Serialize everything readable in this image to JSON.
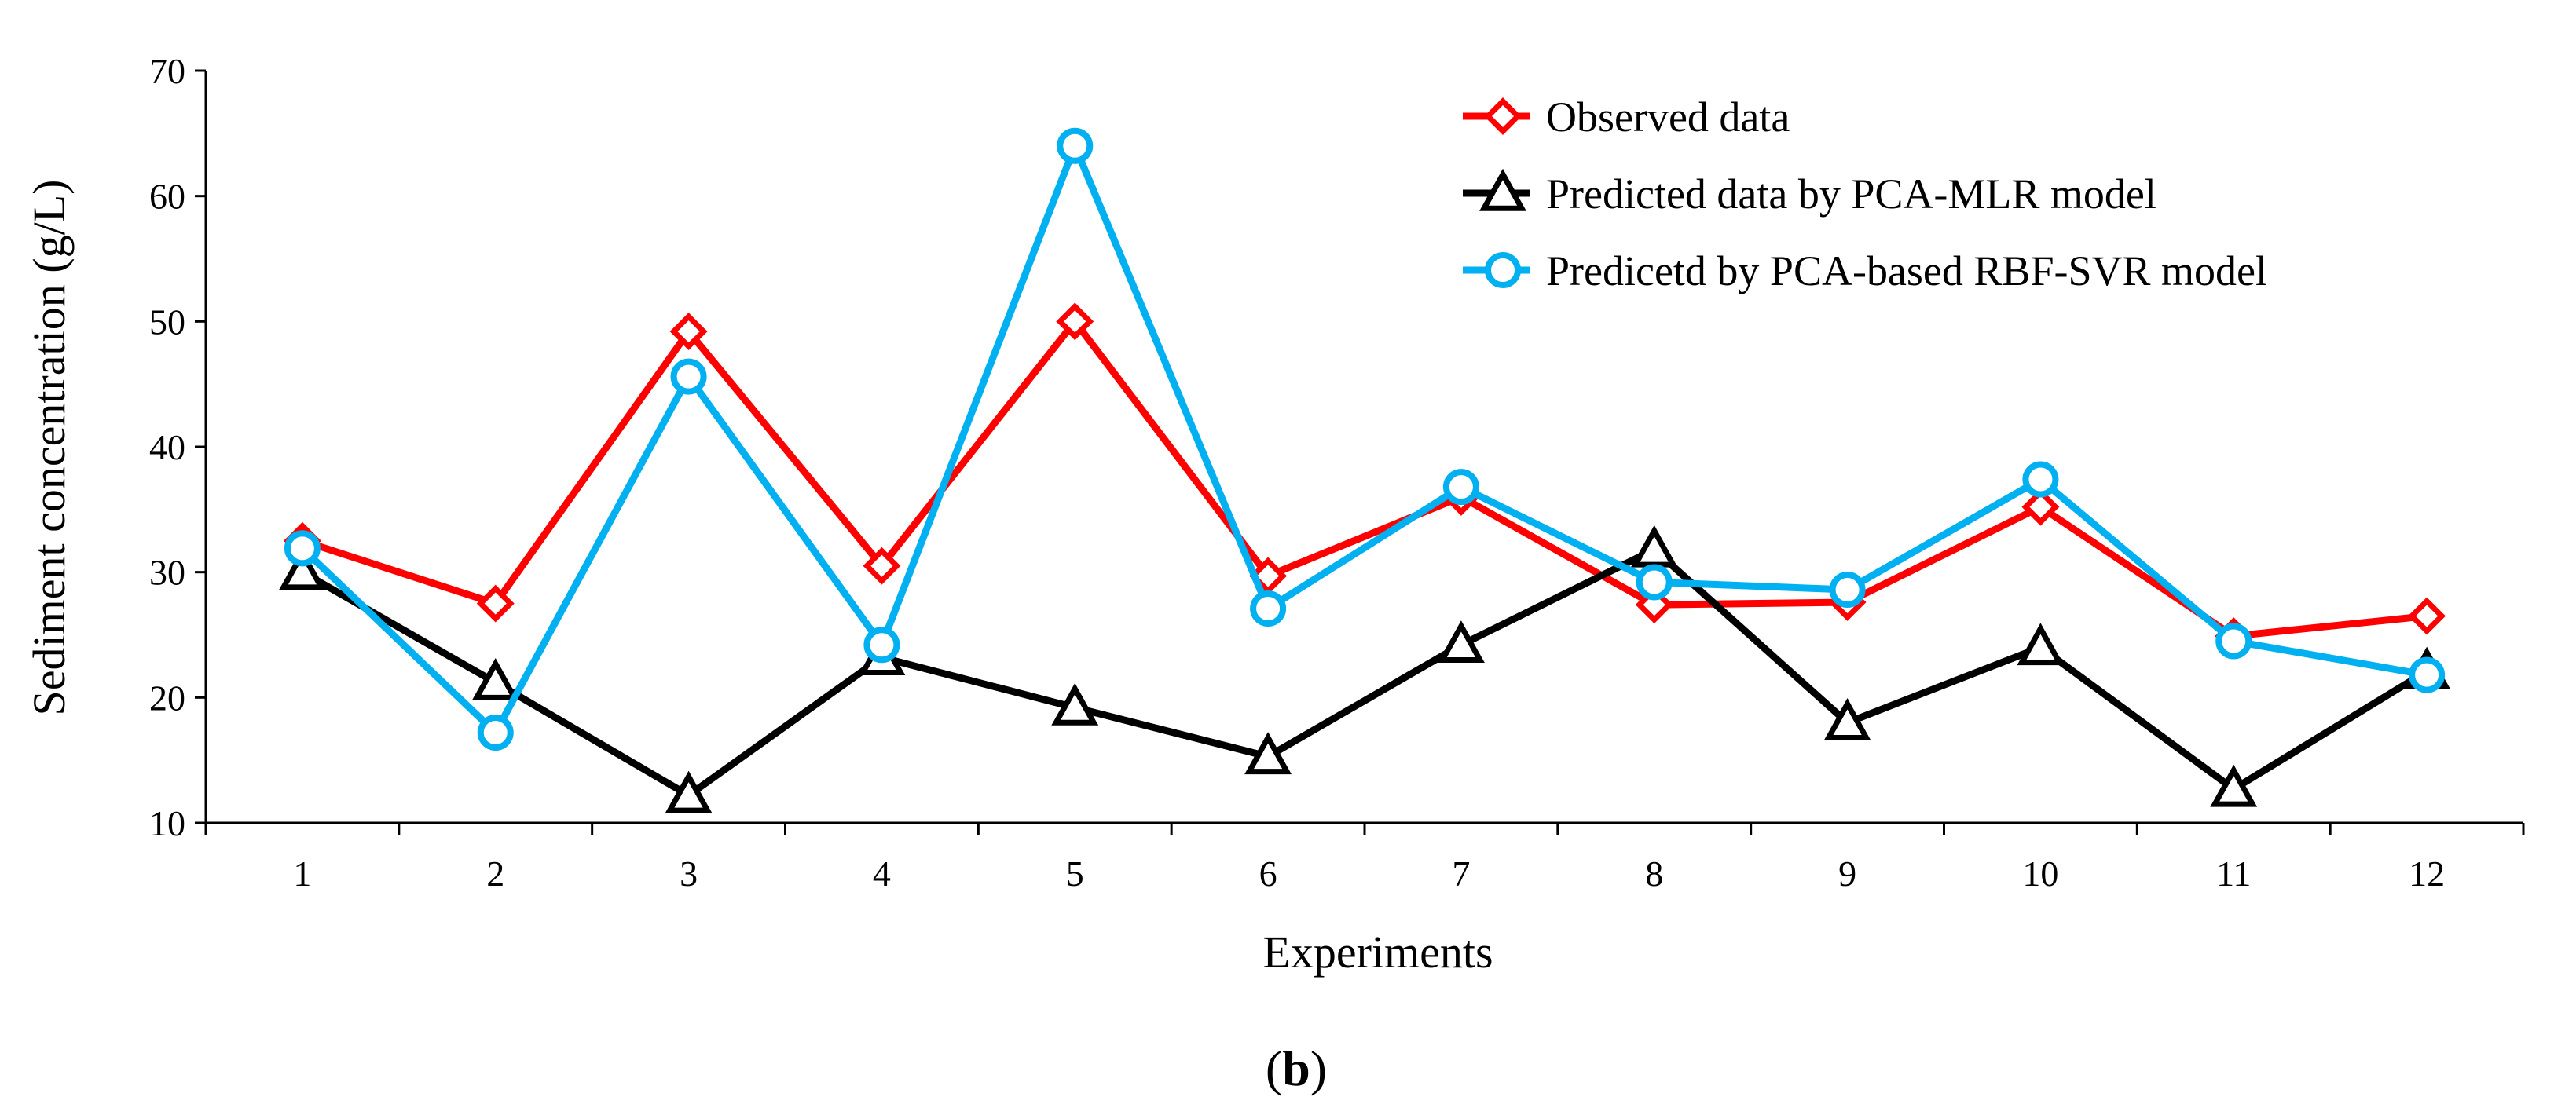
{
  "chart_data": {
    "type": "line",
    "xlabel": "Experiments",
    "ylabel": "Sediment  concentration  (g/L)",
    "panel_label_open": "(",
    "panel_label_letter": "b",
    "panel_label_close": ")",
    "ylim": [
      10,
      70
    ],
    "yticks": [
      10,
      20,
      30,
      40,
      50,
      60,
      70
    ],
    "categories": [
      "1",
      "2",
      "3",
      "4",
      "5",
      "6",
      "7",
      "8",
      "9",
      "10",
      "11",
      "12"
    ],
    "legend_position": "top-right",
    "series": [
      {
        "name": "Observed data",
        "color": "#ff0000",
        "marker": "diamond",
        "values": [
          32.5,
          27.5,
          49.2,
          30.5,
          50.0,
          29.7,
          36.0,
          27.4,
          27.6,
          35.2,
          24.9,
          26.5
        ]
      },
      {
        "name": "Predicted data by PCA-MLR model",
        "color": "#000000",
        "marker": "triangle",
        "values": [
          30.0,
          21.2,
          12.2,
          23.2,
          19.2,
          15.3,
          24.2,
          31.8,
          18.0,
          24.0,
          12.7,
          22.1
        ]
      },
      {
        "name": "Predicetd by PCA-based RBF-SVR model",
        "color": "#00b0f0",
        "marker": "circle",
        "values": [
          31.9,
          17.2,
          45.6,
          24.2,
          64.0,
          27.1,
          36.8,
          29.2,
          28.6,
          37.4,
          24.5,
          21.8
        ]
      }
    ]
  }
}
